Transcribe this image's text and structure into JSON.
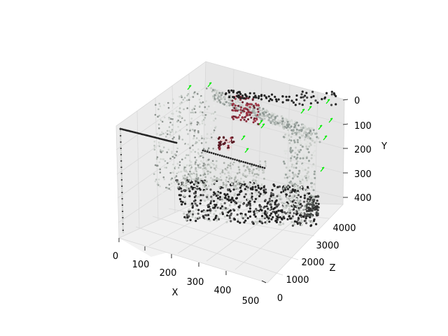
{
  "chart_data": {
    "type": "scatter",
    "projection": "3d",
    "title": "",
    "xlabel": "X",
    "ylabel": "Y",
    "zlabel": "Z",
    "xlim": [
      0,
      500
    ],
    "ylim": [
      0,
      400
    ],
    "zlim": [
      0,
      4000
    ],
    "y_axis_inverted": true,
    "x_ticks": [
      "0",
      "100",
      "200",
      "300",
      "400",
      "500"
    ],
    "y_ticks": [
      "0",
      "100",
      "200",
      "300",
      "400"
    ],
    "z_ticks": [
      "0",
      "1000",
      "2000",
      "3000",
      "4000"
    ],
    "grid": true,
    "series": [
      {
        "marker_color": "#222222"
      },
      {
        "marker_color": "#c8ccc8"
      },
      {
        "marker_color": "#8c2a3a"
      },
      {
        "marker_color": "#00ee00"
      }
    ],
    "colors": {
      "pane": "#f2f2f2",
      "pane_dark": "#e6e6e6",
      "grid": "#d9d9d9",
      "points_dark": "#222222",
      "points_light": "#c8ccc8",
      "points_red": "#8c2a3a",
      "arrows": "#00ee00"
    }
  }
}
